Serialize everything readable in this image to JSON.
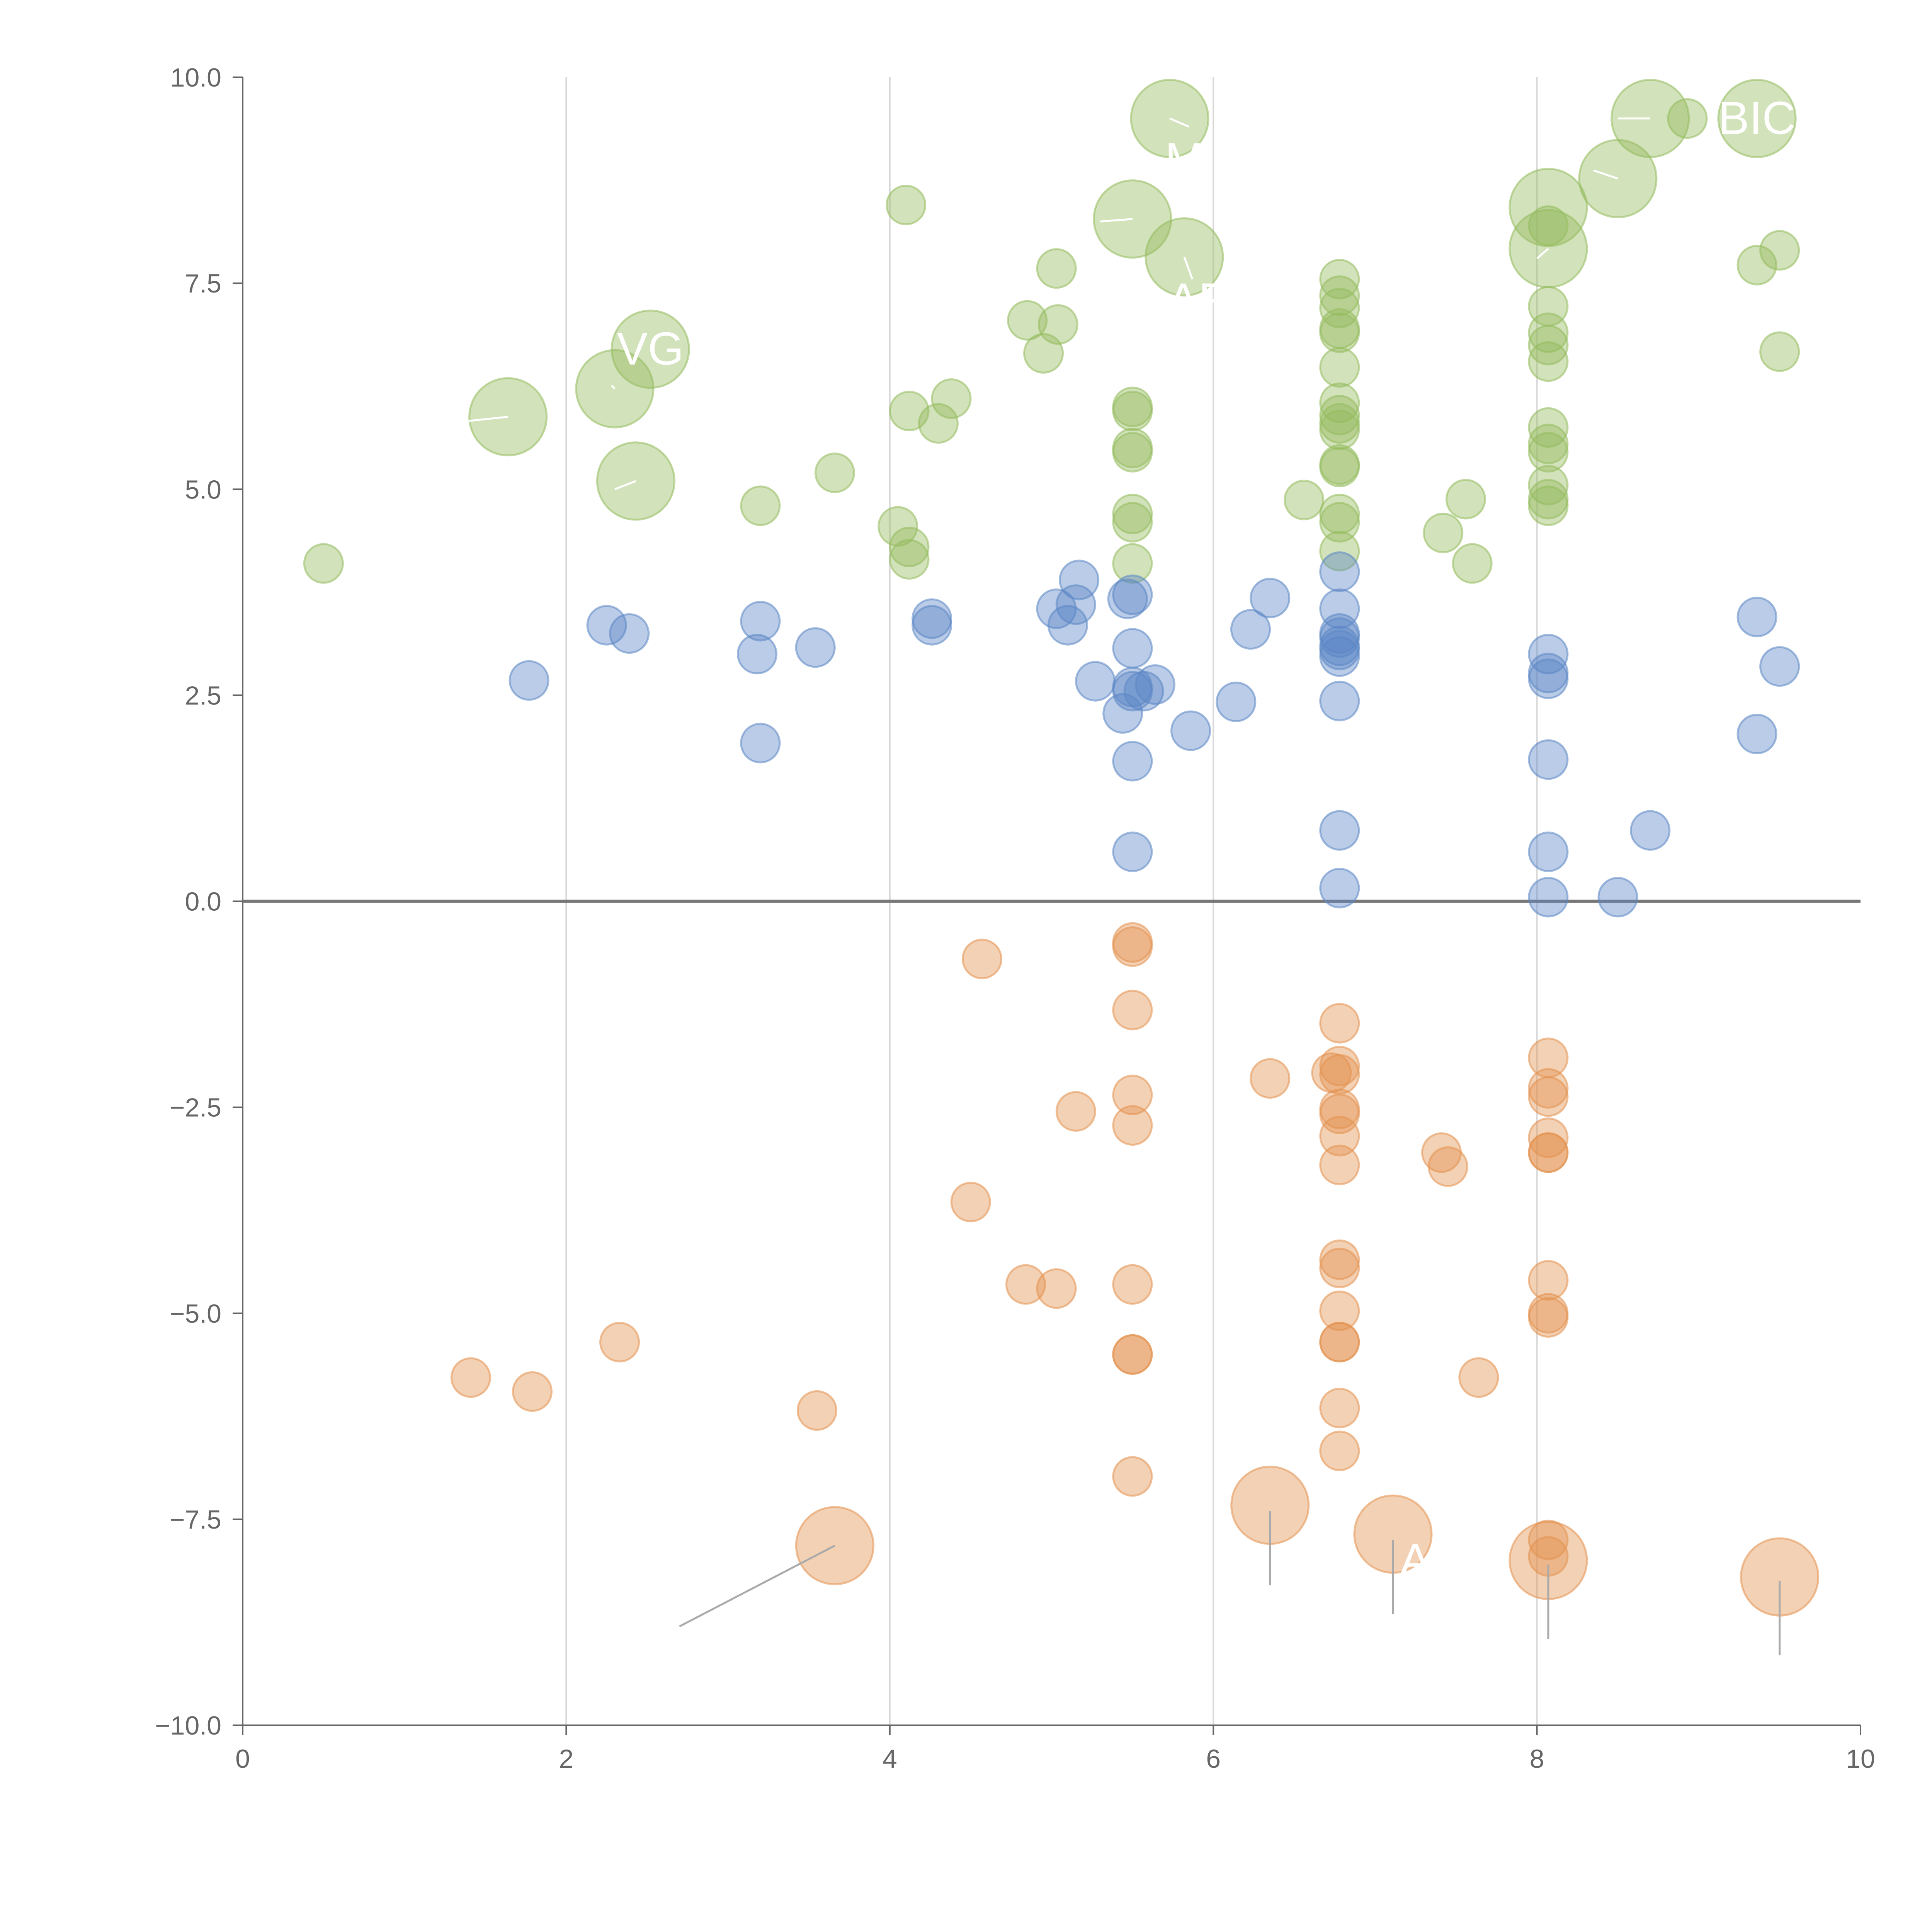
{
  "chart_data": {
    "type": "scatter",
    "title": "",
    "xlabel": "",
    "ylabel": "",
    "xlim": [
      0,
      10
    ],
    "ylim": [
      -10,
      10
    ],
    "x_ticks": [
      0,
      2,
      4,
      6,
      8,
      10
    ],
    "x_tick_labels": [
      "0",
      "2",
      "4",
      "6",
      "8",
      "10"
    ],
    "y_ticks": [
      10,
      7.5,
      5,
      2.5,
      0,
      -2.5,
      -5,
      -7.5,
      -10
    ],
    "y_tick_labels": [
      "10.0",
      "7.5",
      "5.0",
      "2.5",
      "0.0",
      "−2.5",
      "−5.0",
      "−7.5",
      "−10.0"
    ],
    "vertical_gridlines_at": [
      2,
      4,
      6,
      8
    ],
    "zero_line": 0,
    "colors": {
      "green": "#93bb5c",
      "blue": "#5b86c5",
      "orange": "#e3924f",
      "axis": "#666666",
      "grid": "#d9d9d9",
      "zero_line": "#777777",
      "leader": "#aaaaaa"
    },
    "series": [
      {
        "name": "green",
        "color": "#93bb5c",
        "points": [
          [
            0.5,
            4.1
          ],
          [
            1.64,
            5.88
          ],
          [
            2.3,
            6.22
          ],
          [
            2.52,
            6.7
          ],
          [
            2.43,
            5.1
          ],
          [
            3.2,
            4.8
          ],
          [
            3.66,
            5.2
          ],
          [
            4.05,
            4.55
          ],
          [
            4.12,
            4.3
          ],
          [
            4.12,
            4.15
          ],
          [
            4.12,
            5.95
          ],
          [
            4.3,
            5.8
          ],
          [
            4.38,
            6.1
          ],
          [
            4.1,
            8.45
          ],
          [
            4.85,
            7.05
          ],
          [
            5.04,
            7.0
          ],
          [
            4.95,
            6.65
          ],
          [
            5.03,
            7.68
          ],
          [
            5.5,
            8.28
          ],
          [
            5.73,
            9.5
          ],
          [
            5.82,
            7.82
          ],
          [
            5.5,
            6.0
          ],
          [
            5.5,
            5.95
          ],
          [
            5.5,
            5.5
          ],
          [
            5.5,
            5.45
          ],
          [
            5.5,
            4.7
          ],
          [
            5.5,
            4.6
          ],
          [
            5.5,
            4.1
          ],
          [
            6.56,
            4.87
          ],
          [
            6.78,
            7.55
          ],
          [
            6.78,
            7.35
          ],
          [
            6.78,
            7.2
          ],
          [
            6.78,
            6.95
          ],
          [
            6.78,
            6.9
          ],
          [
            6.78,
            6.48
          ],
          [
            6.78,
            6.05
          ],
          [
            6.78,
            5.9
          ],
          [
            6.78,
            5.8
          ],
          [
            6.78,
            5.72
          ],
          [
            6.78,
            5.3
          ],
          [
            6.78,
            5.27
          ],
          [
            6.78,
            4.7
          ],
          [
            6.78,
            4.6
          ],
          [
            6.78,
            4.25
          ],
          [
            7.42,
            4.47
          ],
          [
            7.56,
            4.88
          ],
          [
            7.6,
            4.1
          ],
          [
            8.07,
            8.42
          ],
          [
            8.07,
            7.92
          ],
          [
            8.07,
            8.2
          ],
          [
            8.07,
            7.22
          ],
          [
            8.07,
            6.9
          ],
          [
            8.07,
            6.75
          ],
          [
            8.07,
            6.55
          ],
          [
            8.07,
            5.75
          ],
          [
            8.07,
            5.55
          ],
          [
            8.07,
            5.45
          ],
          [
            8.07,
            5.05
          ],
          [
            8.07,
            4.88
          ],
          [
            8.07,
            4.8
          ],
          [
            8.5,
            8.77
          ],
          [
            8.7,
            9.5
          ],
          [
            8.93,
            9.5
          ],
          [
            9.36,
            9.5
          ],
          [
            9.36,
            7.72
          ],
          [
            9.5,
            7.9
          ],
          [
            9.5,
            6.67
          ]
        ]
      },
      {
        "name": "blue",
        "color": "#5b86c5",
        "points": [
          [
            1.77,
            2.68
          ],
          [
            2.25,
            3.35
          ],
          [
            2.39,
            3.25
          ],
          [
            3.18,
            3.0
          ],
          [
            3.2,
            3.4
          ],
          [
            3.2,
            1.92
          ],
          [
            3.54,
            3.08
          ],
          [
            4.26,
            3.43
          ],
          [
            4.26,
            3.35
          ],
          [
            5.03,
            3.55
          ],
          [
            5.1,
            3.35
          ],
          [
            5.15,
            3.6
          ],
          [
            5.17,
            3.9
          ],
          [
            5.27,
            2.67
          ],
          [
            5.44,
            2.28
          ],
          [
            5.47,
            3.67
          ],
          [
            5.5,
            3.72
          ],
          [
            5.5,
            3.07
          ],
          [
            5.5,
            2.6
          ],
          [
            5.5,
            2.55
          ],
          [
            5.5,
            1.7
          ],
          [
            5.5,
            0.6
          ],
          [
            5.57,
            2.55
          ],
          [
            5.64,
            2.63
          ],
          [
            5.86,
            2.07
          ],
          [
            6.14,
            2.42
          ],
          [
            6.23,
            3.3
          ],
          [
            6.35,
            3.68
          ],
          [
            6.78,
            4.0
          ],
          [
            6.78,
            3.55
          ],
          [
            6.78,
            3.25
          ],
          [
            6.78,
            3.2
          ],
          [
            6.78,
            3.1
          ],
          [
            6.78,
            3.05
          ],
          [
            6.78,
            2.97
          ],
          [
            6.78,
            2.43
          ],
          [
            6.78,
            0.86
          ],
          [
            6.78,
            0.16
          ],
          [
            8.07,
            3.0
          ],
          [
            8.07,
            2.77
          ],
          [
            8.07,
            2.7
          ],
          [
            8.07,
            1.72
          ],
          [
            8.07,
            0.6
          ],
          [
            8.07,
            0.05
          ],
          [
            8.5,
            0.05
          ],
          [
            8.7,
            0.86
          ],
          [
            9.36,
            3.45
          ],
          [
            9.5,
            2.85
          ],
          [
            9.36,
            2.03
          ]
        ]
      },
      {
        "name": "orange",
        "color": "#e3924f",
        "points": [
          [
            1.41,
            -5.78
          ],
          [
            1.79,
            -5.95
          ],
          [
            2.33,
            -5.35
          ],
          [
            3.55,
            -6.18
          ],
          [
            3.66,
            -7.82
          ],
          [
            4.5,
            -3.65
          ],
          [
            4.57,
            -0.7
          ],
          [
            4.84,
            -4.65
          ],
          [
            5.03,
            -4.7
          ],
          [
            5.15,
            -2.55
          ],
          [
            5.5,
            -0.5
          ],
          [
            5.5,
            -0.55
          ],
          [
            5.5,
            -1.32
          ],
          [
            5.5,
            -2.35
          ],
          [
            5.5,
            -2.72
          ],
          [
            5.5,
            -4.65
          ],
          [
            5.5,
            -5.5
          ],
          [
            5.5,
            -5.5
          ],
          [
            5.5,
            -6.98
          ],
          [
            6.35,
            -2.15
          ],
          [
            6.35,
            -7.33
          ],
          [
            6.73,
            -2.08
          ],
          [
            6.78,
            -1.48
          ],
          [
            6.78,
            -2.0
          ],
          [
            6.78,
            -2.1
          ],
          [
            6.78,
            -2.52
          ],
          [
            6.78,
            -2.58
          ],
          [
            6.78,
            -2.85
          ],
          [
            6.78,
            -3.2
          ],
          [
            6.78,
            -4.35
          ],
          [
            6.78,
            -4.45
          ],
          [
            6.78,
            -4.97
          ],
          [
            6.78,
            -5.35
          ],
          [
            6.78,
            -5.35
          ],
          [
            6.78,
            -6.15
          ],
          [
            6.78,
            -6.67
          ],
          [
            7.11,
            -7.68
          ],
          [
            7.41,
            -3.05
          ],
          [
            7.45,
            -3.22
          ],
          [
            7.64,
            -5.78
          ],
          [
            8.07,
            -1.9
          ],
          [
            8.07,
            -2.27
          ],
          [
            8.07,
            -2.37
          ],
          [
            8.07,
            -2.87
          ],
          [
            8.07,
            -3.05
          ],
          [
            8.07,
            -3.05
          ],
          [
            8.07,
            -4.6
          ],
          [
            8.07,
            -5.0
          ],
          [
            8.07,
            -5.05
          ],
          [
            8.07,
            -7.75
          ],
          [
            8.07,
            -7.95
          ],
          [
            8.07,
            -8.0
          ],
          [
            9.5,
            -8.2
          ]
        ]
      }
    ],
    "large_points": [
      {
        "series": "green",
        "x": 1.64,
        "y": 5.88
      },
      {
        "series": "green",
        "x": 2.3,
        "y": 6.22
      },
      {
        "series": "green",
        "x": 2.52,
        "y": 6.7
      },
      {
        "series": "green",
        "x": 2.43,
        "y": 5.1
      },
      {
        "series": "green",
        "x": 5.5,
        "y": 8.28
      },
      {
        "series": "green",
        "x": 5.73,
        "y": 9.5
      },
      {
        "series": "green",
        "x": 5.82,
        "y": 7.82
      },
      {
        "series": "green",
        "x": 8.07,
        "y": 8.42
      },
      {
        "series": "green",
        "x": 8.07,
        "y": 7.92
      },
      {
        "series": "green",
        "x": 8.5,
        "y": 8.77
      },
      {
        "series": "green",
        "x": 8.7,
        "y": 9.5
      },
      {
        "series": "green",
        "x": 9.36,
        "y": 9.5
      },
      {
        "series": "orange",
        "x": 3.66,
        "y": -7.82
      },
      {
        "series": "orange",
        "x": 6.35,
        "y": -7.33
      },
      {
        "series": "orange",
        "x": 7.11,
        "y": -7.68
      },
      {
        "series": "orange",
        "x": 8.07,
        "y": -8.0
      },
      {
        "series": "orange",
        "x": 9.5,
        "y": -8.2
      }
    ],
    "annotations": [
      {
        "text": "VG",
        "x": 2.52,
        "y": 6.7,
        "color": "#ffffff"
      },
      {
        "text": "BIC",
        "x": 9.36,
        "y": 9.5,
        "color": "#ffffff"
      },
      {
        "text": "M",
        "x": 5.82,
        "y": 9.0,
        "color": "#ffffff"
      },
      {
        "text": "AF",
        "x": 5.9,
        "y": 7.3,
        "color": "#ffffff"
      },
      {
        "text": "AR",
        "x": 7.35,
        "y": -8.0,
        "color": "#ffffff"
      }
    ],
    "leader_lines": [
      {
        "from": [
          3.66,
          -7.82
        ],
        "to": [
          2.7,
          -8.8
        ],
        "color": "#aaaaaa"
      },
      {
        "from": [
          6.35,
          -7.4
        ],
        "to": [
          6.35,
          -8.3
        ],
        "color": "#aaaaaa"
      },
      {
        "from": [
          7.11,
          -7.75
        ],
        "to": [
          7.11,
          -8.65
        ],
        "color": "#aaaaaa"
      },
      {
        "from": [
          8.07,
          -8.05
        ],
        "to": [
          8.07,
          -8.95
        ],
        "color": "#aaaaaa"
      },
      {
        "from": [
          9.5,
          -8.25
        ],
        "to": [
          9.5,
          -9.15
        ],
        "color": "#aaaaaa"
      },
      {
        "from": [
          1.64,
          5.88
        ],
        "to": [
          1.4,
          5.83
        ],
        "color": "#ffffff"
      },
      {
        "from": [
          2.3,
          6.22
        ],
        "to": [
          2.28,
          6.26
        ],
        "color": "#ffffff"
      },
      {
        "from": [
          2.43,
          5.1
        ],
        "to": [
          2.3,
          5.0
        ],
        "color": "#ffffff"
      },
      {
        "from": [
          5.5,
          8.28
        ],
        "to": [
          5.3,
          8.25
        ],
        "color": "#ffffff"
      },
      {
        "from": [
          5.73,
          9.5
        ],
        "to": [
          5.85,
          9.4
        ],
        "color": "#ffffff"
      },
      {
        "from": [
          5.82,
          7.82
        ],
        "to": [
          5.87,
          7.55
        ],
        "color": "#ffffff"
      },
      {
        "from": [
          8.07,
          7.92
        ],
        "to": [
          8.0,
          7.8
        ],
        "color": "#ffffff"
      },
      {
        "from": [
          8.5,
          8.77
        ],
        "to": [
          8.35,
          8.87
        ],
        "color": "#ffffff"
      },
      {
        "from": [
          8.7,
          9.5
        ],
        "to": [
          8.5,
          9.5
        ],
        "color": "#ffffff"
      }
    ]
  }
}
